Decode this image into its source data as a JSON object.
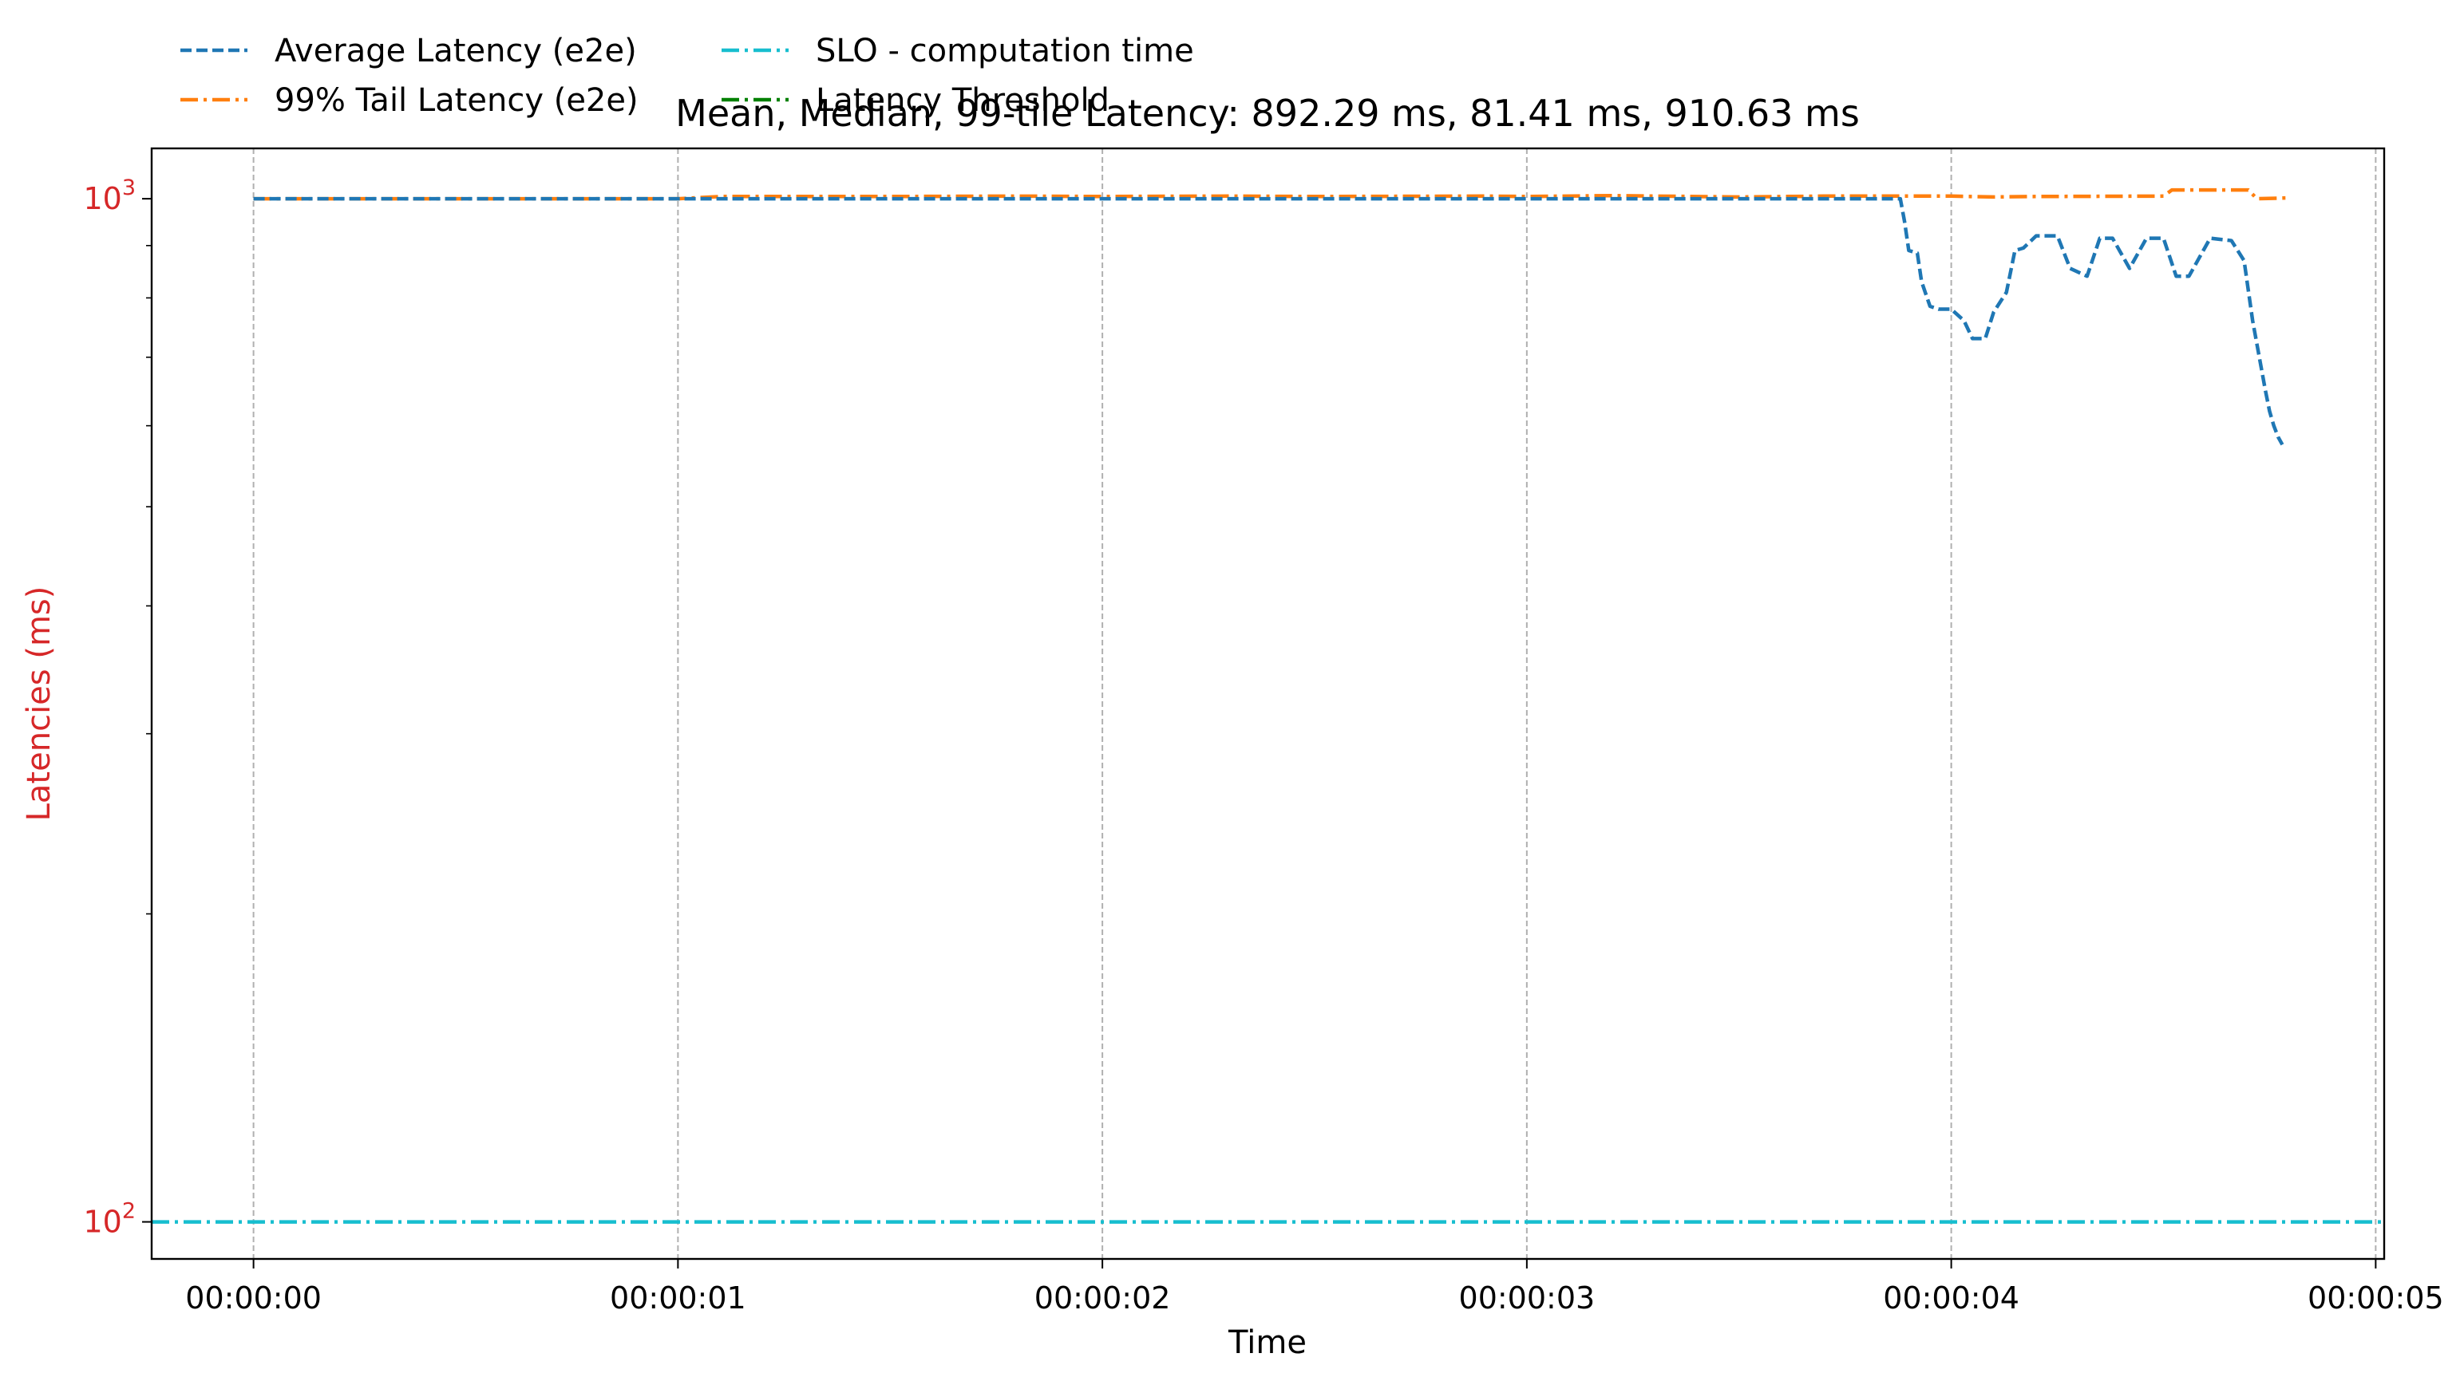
{
  "chart_data": {
    "type": "line",
    "title": "Mean, Median, 99-tile Latency: 892.29 ms, 81.41 ms, 910.63 ms",
    "xlabel": "Time",
    "ylabel": "Latencies (ms)",
    "ylabel_color": "#d62728",
    "ytick_color": "#d62728",
    "yscale": "log",
    "ylim": [
      92,
      1120
    ],
    "xlim": [
      -0.24,
      5.02
    ],
    "grid": "x-dashed",
    "legend_position": "top-left-outside",
    "x_ticks": [
      {
        "value": 0,
        "label": "00:00:00"
      },
      {
        "value": 1,
        "label": "00:00:01"
      },
      {
        "value": 2,
        "label": "00:00:02"
      },
      {
        "value": 3,
        "label": "00:00:03"
      },
      {
        "value": 4,
        "label": "00:00:04"
      },
      {
        "value": 5,
        "label": "00:00:05"
      }
    ],
    "y_ticks": [
      {
        "value": 100,
        "base": "10",
        "exp": "2"
      },
      {
        "value": 1000,
        "base": "10",
        "exp": "3"
      }
    ],
    "series": [
      {
        "name": "Average Latency (e2e)",
        "color": "#1f77b4",
        "style": "dashed",
        "x": [
          0,
          0.5,
          1.0,
          1.5,
          2.0,
          2.5,
          3.0,
          3.5,
          3.88,
          3.89,
          3.9,
          3.92,
          3.93,
          3.95,
          3.97,
          4.0,
          4.03,
          4.05,
          4.08,
          4.1,
          4.13,
          4.15,
          4.17,
          4.2,
          4.25,
          4.28,
          4.32,
          4.35,
          4.38,
          4.42,
          4.46,
          4.5,
          4.53,
          4.56,
          4.61,
          4.66,
          4.69,
          4.71,
          4.74,
          4.75,
          4.76,
          4.77,
          4.78
        ],
        "y": [
          1000,
          1000,
          1000,
          1000,
          1000,
          1000,
          1000,
          1000,
          1000,
          950,
          890,
          885,
          830,
          785,
          780,
          780,
          760,
          730,
          730,
          775,
          810,
          890,
          895,
          920,
          920,
          855,
          840,
          915,
          915,
          855,
          915,
          915,
          840,
          840,
          915,
          910,
          870,
          760,
          650,
          620,
          600,
          585,
          575
        ]
      },
      {
        "name": "99% Tail Latency (e2e)",
        "color": "#ff7f0e",
        "style": "dashdot",
        "x": [
          0,
          0.5,
          1.0,
          1.1,
          1.5,
          1.8,
          2.0,
          2.3,
          2.5,
          2.9,
          3.0,
          3.2,
          3.5,
          3.7,
          4.0,
          4.1,
          4.2,
          4.5,
          4.52,
          4.7,
          4.72,
          4.8
        ],
        "y": [
          1000,
          1000,
          1000,
          1005,
          1005,
          1006,
          1005,
          1006,
          1005,
          1006,
          1005,
          1007,
          1004,
          1006,
          1006,
          1004,
          1005,
          1006,
          1020,
          1020,
          1000,
          1002
        ]
      },
      {
        "name": "SLO - computation time",
        "color": "#17becf",
        "style": "dashdot",
        "x": [
          -0.24,
          5.02
        ],
        "y": [
          100,
          100
        ]
      },
      {
        "name": "Latency Threshold",
        "color": "#008000",
        "style": "dashdot",
        "x": [],
        "y": []
      }
    ]
  }
}
